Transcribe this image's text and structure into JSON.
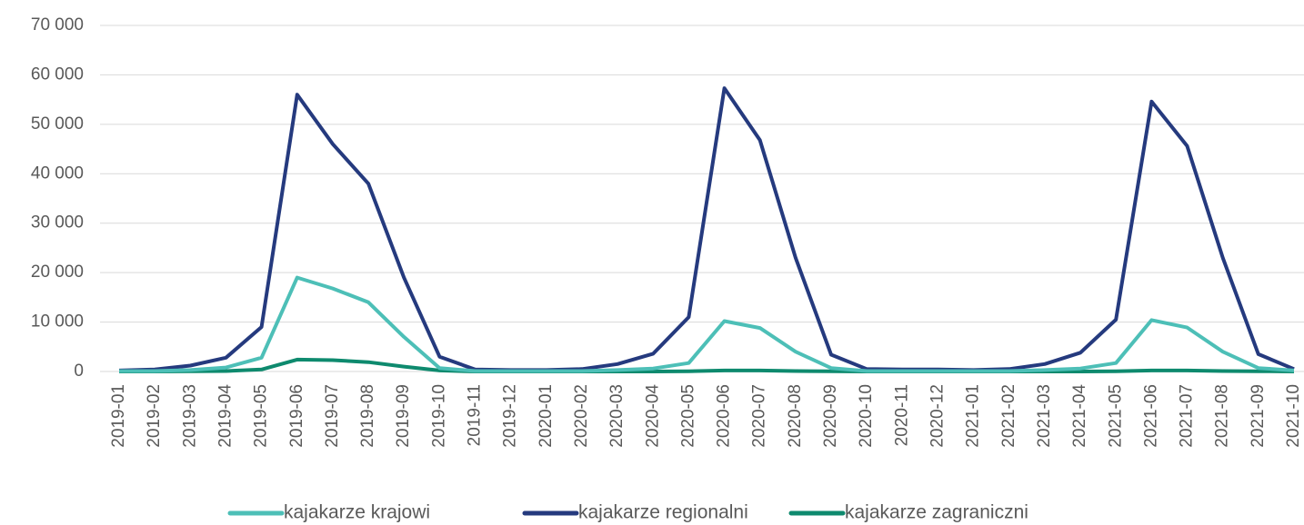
{
  "chart_data": {
    "type": "line",
    "categories": [
      "2019-01",
      "2019-02",
      "2019-03",
      "2019-04",
      "2019-05",
      "2019-06",
      "2019-07",
      "2019-08",
      "2019-09",
      "2019-10",
      "2019-11",
      "2019-12",
      "2020-01",
      "2020-02",
      "2020-03",
      "2020-04",
      "2020-05",
      "2020-06",
      "2020-07",
      "2020-08",
      "2020-09",
      "2020-10",
      "2020-11",
      "2020-12",
      "2021-01",
      "2021-02",
      "2021-03",
      "2021-04",
      "2021-05",
      "2021-06",
      "2021-07",
      "2021-08",
      "2021-09",
      "2021-10"
    ],
    "series": [
      {
        "name": "kajakarze krajowi",
        "color": "#4dbfb7",
        "values": [
          100,
          100,
          300,
          800,
          2800,
          19000,
          16800,
          14000,
          7000,
          700,
          100,
          100,
          100,
          100,
          300,
          600,
          1700,
          10200,
          8800,
          4000,
          700,
          100,
          100,
          100,
          100,
          100,
          300,
          600,
          1700,
          10400,
          8900,
          4000,
          700,
          200
        ]
      },
      {
        "name": "kajakarze regionalni",
        "color": "#253a7e",
        "values": [
          200,
          400,
          1200,
          2800,
          9000,
          56000,
          46000,
          38000,
          19000,
          3000,
          400,
          300,
          300,
          500,
          1500,
          3600,
          11000,
          57300,
          46800,
          23000,
          3400,
          500,
          400,
          400,
          300,
          500,
          1500,
          3800,
          10500,
          54600,
          45600,
          23000,
          3500,
          500
        ]
      },
      {
        "name": "kajakarze zagraniczni",
        "color": "#0e8a6e",
        "values": [
          0,
          0,
          50,
          100,
          400,
          2400,
          2300,
          1900,
          1000,
          200,
          0,
          0,
          0,
          0,
          0,
          0,
          50,
          200,
          200,
          100,
          50,
          0,
          0,
          0,
          0,
          0,
          0,
          0,
          50,
          200,
          200,
          100,
          50,
          0
        ]
      }
    ],
    "ylim": [
      0,
      70000
    ],
    "yticks": [
      0,
      {
        "value": 10000,
        "label": "10 000"
      },
      {
        "value": 20000,
        "label": "20 000"
      },
      {
        "value": 30000,
        "label": "30 000"
      },
      {
        "value": 40000,
        "label": "40 000"
      },
      {
        "value": 50000,
        "label": "50 000"
      },
      {
        "value": 60000,
        "label": "60 000"
      },
      {
        "value": 70000,
        "label": "70 000"
      }
    ],
    "grid": true,
    "legend": "bottom"
  }
}
